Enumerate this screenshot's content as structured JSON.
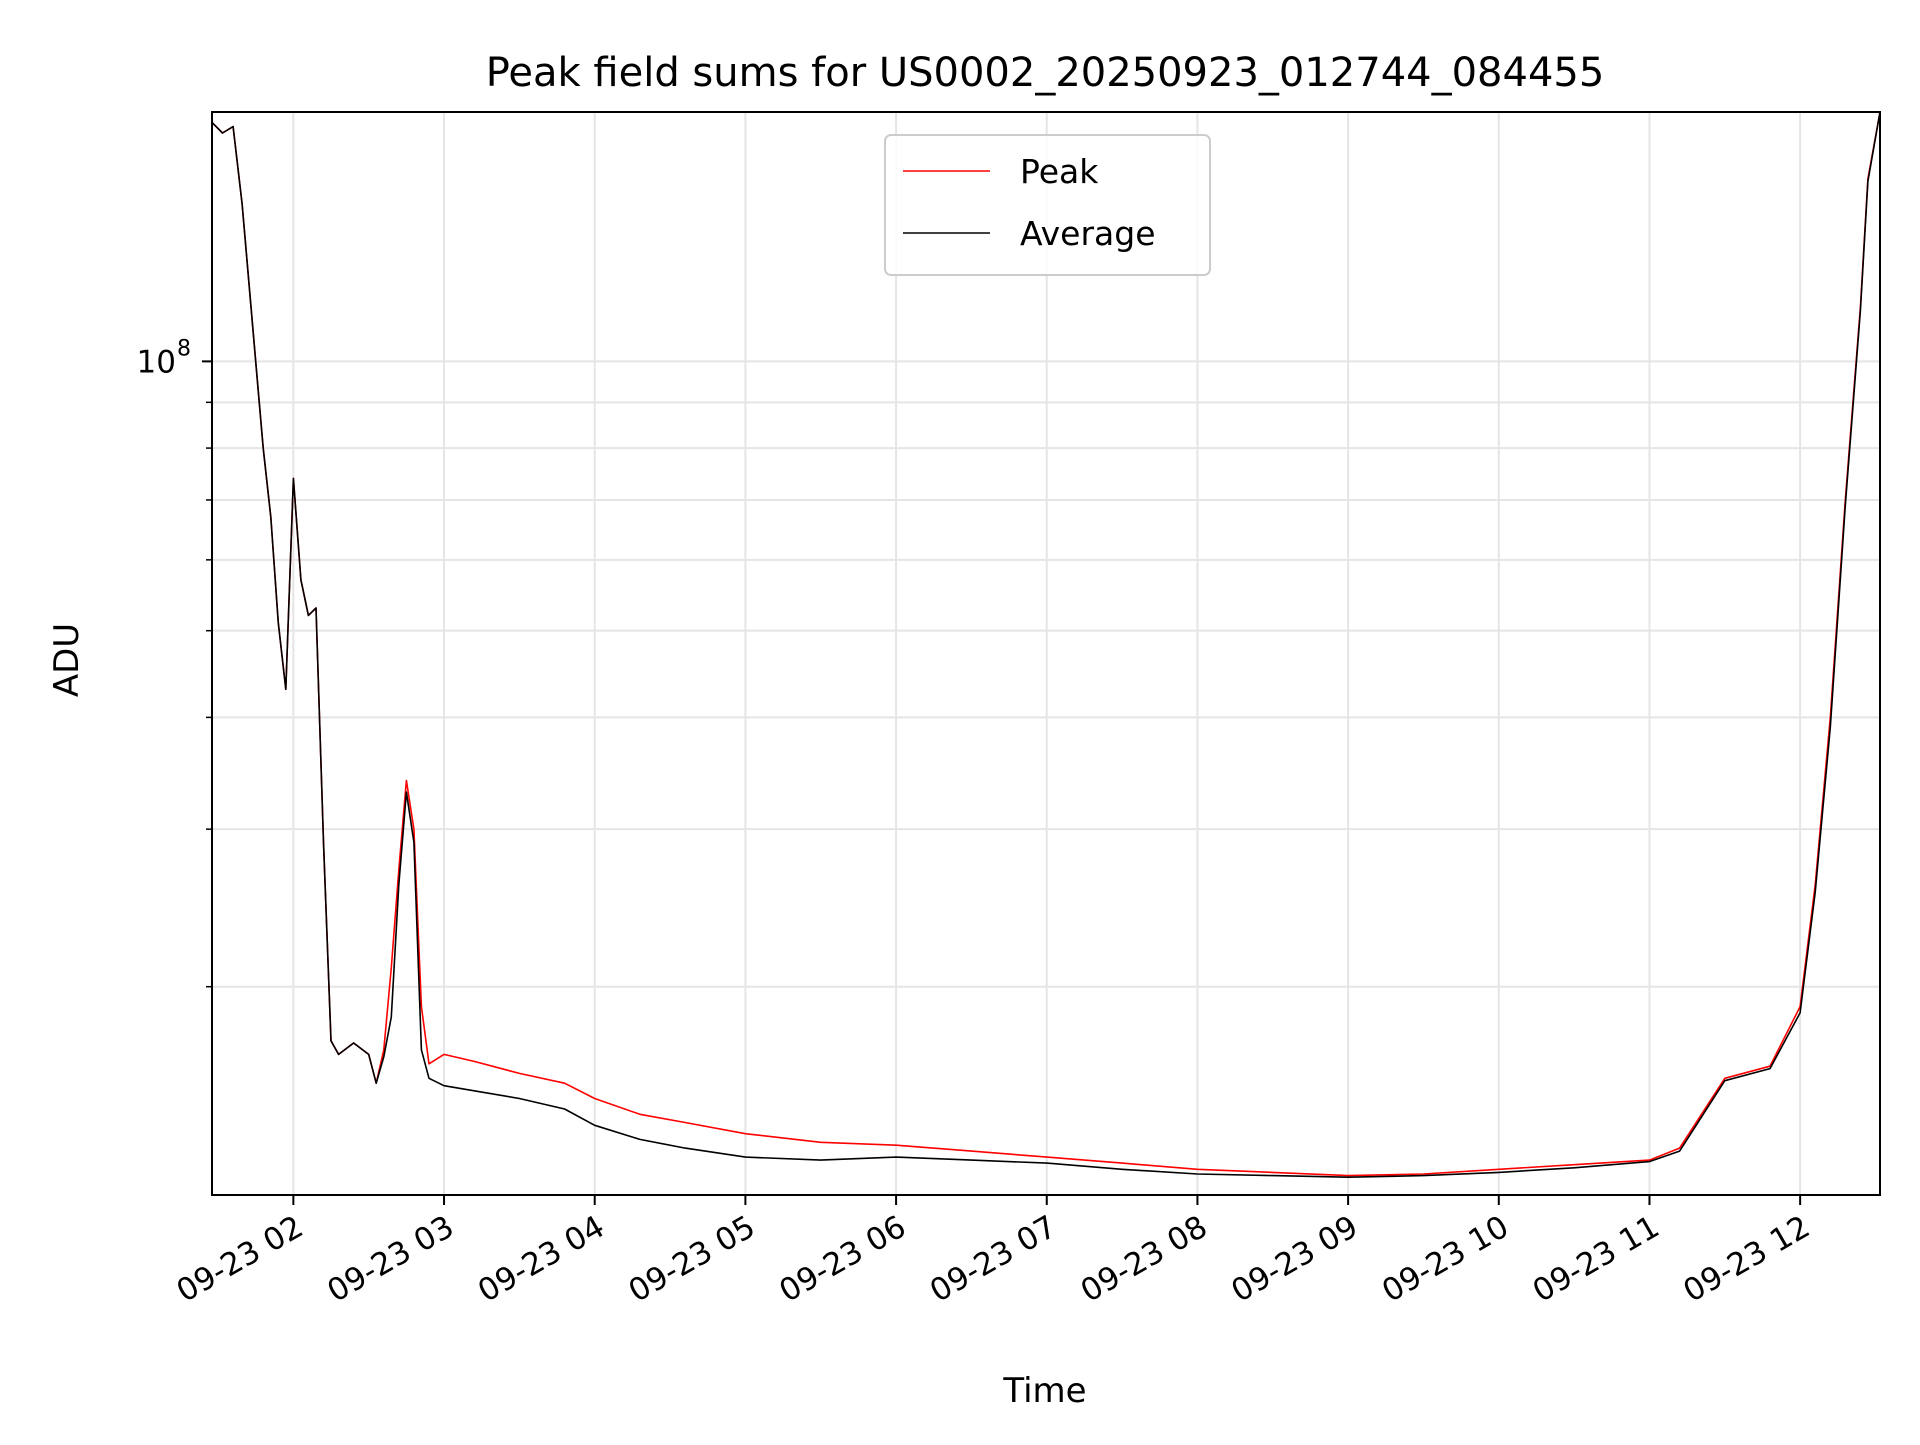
{
  "chart_data": {
    "type": "line",
    "title": "Peak field sums for US0002_20250923_012744_084455",
    "xlabel": "Time",
    "ylabel": "ADU",
    "y_scale": "log",
    "x_unit": "hours (UTC, 2025-09-23)",
    "xlim": [
      1.46,
      12.53
    ],
    "ylim": [
      11700000,
      190000000
    ],
    "x_ticks": [
      {
        "x": 2,
        "label": "09-23 02"
      },
      {
        "x": 3,
        "label": "09-23 03"
      },
      {
        "x": 4,
        "label": "09-23 04"
      },
      {
        "x": 5,
        "label": "09-23 05"
      },
      {
        "x": 6,
        "label": "09-23 06"
      },
      {
        "x": 7,
        "label": "09-23 07"
      },
      {
        "x": 8,
        "label": "09-23 08"
      },
      {
        "x": 9,
        "label": "09-23 09"
      },
      {
        "x": 10,
        "label": "09-23 10"
      },
      {
        "x": 11,
        "label": "09-23 11"
      },
      {
        "x": 12,
        "label": "09-23 12"
      }
    ],
    "y_major_ticks": [
      {
        "value": 100000000,
        "label_base": "10",
        "label_exp": "8"
      }
    ],
    "y_minor_ticks": [
      20000000,
      30000000,
      40000000,
      50000000,
      60000000,
      70000000,
      80000000,
      90000000
    ],
    "grid": true,
    "legend_position": "upper-center",
    "series": [
      {
        "name": "Peak",
        "color": "#ff0000",
        "x": [
          1.46,
          1.53,
          1.6,
          1.66,
          1.75,
          1.8,
          1.85,
          1.9,
          1.95,
          2.0,
          2.05,
          2.1,
          2.15,
          2.2,
          2.25,
          2.3,
          2.4,
          2.5,
          2.55,
          2.6,
          2.65,
          2.7,
          2.75,
          2.8,
          2.85,
          2.9,
          3.0,
          3.2,
          3.5,
          3.8,
          4.0,
          4.3,
          4.6,
          5.0,
          5.5,
          6.0,
          6.5,
          7.0,
          7.5,
          8.0,
          8.5,
          9.0,
          9.5,
          10.0,
          10.5,
          11.0,
          11.2,
          11.5,
          11.8,
          12.0,
          12.1,
          12.2,
          12.3,
          12.4,
          12.45,
          12.53
        ],
        "values": [
          185000000,
          180000000,
          183000000,
          150000000,
          100000000,
          80000000,
          67000000,
          51000000,
          43000000,
          74000000,
          57000000,
          52000000,
          53000000,
          29000000,
          17400000,
          16800000,
          17300000,
          16800000,
          15600000,
          17000000,
          21000000,
          27000000,
          34000000,
          30000000,
          19000000,
          16400000,
          16800000,
          16500000,
          16000000,
          15600000,
          15000000,
          14400000,
          14100000,
          13700000,
          13400000,
          13300000,
          13100000,
          12900000,
          12700000,
          12500000,
          12400000,
          12300000,
          12350000,
          12500000,
          12650000,
          12800000,
          13200000,
          15800000,
          16300000,
          19000000,
          26000000,
          40000000,
          70000000,
          115000000,
          160000000,
          190000000
        ]
      },
      {
        "name": "Average",
        "color": "#000000",
        "x": [
          1.46,
          1.53,
          1.6,
          1.66,
          1.75,
          1.8,
          1.85,
          1.9,
          1.95,
          2.0,
          2.05,
          2.1,
          2.15,
          2.2,
          2.25,
          2.3,
          2.4,
          2.5,
          2.55,
          2.6,
          2.65,
          2.7,
          2.75,
          2.8,
          2.85,
          2.9,
          3.0,
          3.2,
          3.5,
          3.8,
          4.0,
          4.3,
          4.6,
          5.0,
          5.5,
          6.0,
          6.5,
          7.0,
          7.5,
          8.0,
          8.5,
          9.0,
          9.5,
          10.0,
          10.5,
          11.0,
          11.2,
          11.5,
          11.8,
          12.0,
          12.1,
          12.2,
          12.3,
          12.4,
          12.45,
          12.53
        ],
        "values": [
          185000000,
          180000000,
          183000000,
          150000000,
          100000000,
          80000000,
          67000000,
          51000000,
          43000000,
          74000000,
          57000000,
          52000000,
          53000000,
          29000000,
          17400000,
          16800000,
          17300000,
          16800000,
          15600000,
          16700000,
          18500000,
          26000000,
          33000000,
          29000000,
          17000000,
          15800000,
          15500000,
          15300000,
          15000000,
          14600000,
          14000000,
          13500000,
          13200000,
          12900000,
          12800000,
          12900000,
          12800000,
          12700000,
          12500000,
          12350000,
          12300000,
          12250000,
          12300000,
          12400000,
          12550000,
          12750000,
          13100000,
          15700000,
          16200000,
          18700000,
          25500000,
          39000000,
          69000000,
          114000000,
          159000000,
          190000000
        ]
      }
    ]
  }
}
